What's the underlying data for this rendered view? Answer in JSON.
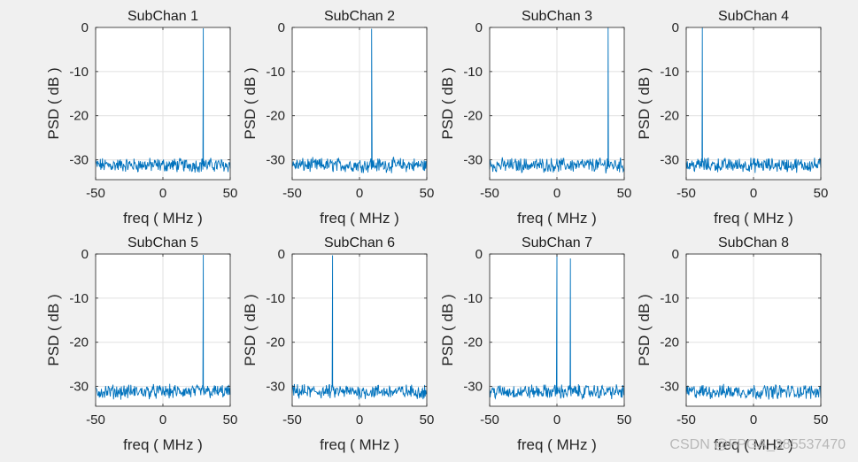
{
  "watermark": "CSDN @FPGA_385537470",
  "chart_data": [
    {
      "type": "line",
      "title": "SubChan 1",
      "xlabel": "freq ( MHz )",
      "ylabel": "PSD ( dB )",
      "xlim": [
        -50,
        50
      ],
      "ylim": [
        -34.5,
        0
      ],
      "xticks": [
        "-50",
        "0",
        "50"
      ],
      "yticks": [
        "0",
        "-10",
        "-20",
        "-30"
      ],
      "grid": true,
      "noise_floor": -31.2,
      "peaks": [
        {
          "x": 30,
          "y": -0.2
        }
      ]
    },
    {
      "type": "line",
      "title": "SubChan 2",
      "xlabel": "freq ( MHz )",
      "ylabel": "PSD ( dB )",
      "xlim": [
        -50,
        50
      ],
      "ylim": [
        -34.5,
        0
      ],
      "xticks": [
        "-50",
        "0",
        "50"
      ],
      "yticks": [
        "0",
        "-10",
        "-20",
        "-30"
      ],
      "grid": true,
      "noise_floor": -31.2,
      "peaks": [
        {
          "x": 9,
          "y": -0.3
        }
      ]
    },
    {
      "type": "line",
      "title": "SubChan 3",
      "xlabel": "freq ( MHz )",
      "ylabel": "PSD ( dB )",
      "xlim": [
        -50,
        50
      ],
      "ylim": [
        -34.5,
        0
      ],
      "xticks": [
        "-50",
        "0",
        "50"
      ],
      "yticks": [
        "0",
        "-10",
        "-20",
        "-30"
      ],
      "grid": true,
      "noise_floor": -31.2,
      "peaks": [
        {
          "x": 38,
          "y": -0.1
        }
      ]
    },
    {
      "type": "line",
      "title": "SubChan 4",
      "xlabel": "freq ( MHz )",
      "ylabel": "PSD ( dB )",
      "xlim": [
        -50,
        50
      ],
      "ylim": [
        -34.5,
        0
      ],
      "xticks": [
        "-50",
        "0",
        "50"
      ],
      "yticks": [
        "0",
        "-10",
        "-20",
        "-30"
      ],
      "grid": true,
      "noise_floor": -31.2,
      "peaks": [
        {
          "x": -38,
          "y": -0.1
        }
      ]
    },
    {
      "type": "line",
      "title": "SubChan 5",
      "xlabel": "freq ( MHz )",
      "ylabel": "PSD ( dB )",
      "xlim": [
        -50,
        50
      ],
      "ylim": [
        -34.5,
        0
      ],
      "xticks": [
        "-50",
        "0",
        "50"
      ],
      "yticks": [
        "0",
        "-10",
        "-20",
        "-30"
      ],
      "grid": true,
      "noise_floor": -31.2,
      "peaks": [
        {
          "x": 30,
          "y": -0.2
        }
      ]
    },
    {
      "type": "line",
      "title": "SubChan 6",
      "xlabel": "freq ( MHz )",
      "ylabel": "PSD ( dB )",
      "xlim": [
        -50,
        50
      ],
      "ylim": [
        -34.5,
        0
      ],
      "xticks": [
        "-50",
        "0",
        "50"
      ],
      "yticks": [
        "0",
        "-10",
        "-20",
        "-30"
      ],
      "grid": true,
      "noise_floor": -31.2,
      "peaks": [
        {
          "x": -20,
          "y": -0.3
        }
      ]
    },
    {
      "type": "line",
      "title": "SubChan 7",
      "xlabel": "freq ( MHz )",
      "ylabel": "PSD ( dB )",
      "xlim": [
        -50,
        50
      ],
      "ylim": [
        -34.5,
        0
      ],
      "xticks": [
        "-50",
        "0",
        "50"
      ],
      "yticks": [
        "0",
        "-10",
        "-20",
        "-30"
      ],
      "grid": true,
      "noise_floor": -31.2,
      "peaks": [
        {
          "x": 0,
          "y": -0.2
        },
        {
          "x": 10,
          "y": -1.0
        }
      ]
    },
    {
      "type": "line",
      "title": "SubChan 8",
      "xlabel": "freq ( MHz )",
      "ylabel": "PSD ( dB )",
      "xlim": [
        -50,
        50
      ],
      "ylim": [
        -34.5,
        0
      ],
      "xticks": [
        "-50",
        "0",
        "50"
      ],
      "yticks": [
        "0",
        "-10",
        "-20",
        "-30"
      ],
      "grid": true,
      "noise_floor": -31.2,
      "peaks": []
    }
  ]
}
